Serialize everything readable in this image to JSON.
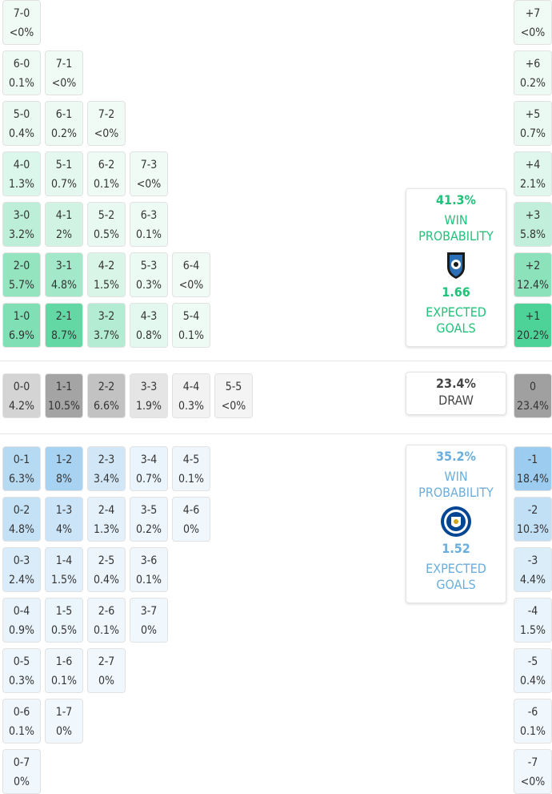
{
  "home_wins": [
    [
      [
        "7-0",
        "<0%"
      ]
    ],
    [
      [
        "6-0",
        "0.1%"
      ],
      [
        "7-1",
        "<0%"
      ]
    ],
    [
      [
        "5-0",
        "0.4%"
      ],
      [
        "6-1",
        "0.2%"
      ],
      [
        "7-2",
        "<0%"
      ]
    ],
    [
      [
        "4-0",
        "1.3%"
      ],
      [
        "5-1",
        "0.7%"
      ],
      [
        "6-2",
        "0.1%"
      ],
      [
        "7-3",
        "<0%"
      ]
    ],
    [
      [
        "3-0",
        "3.2%"
      ],
      [
        "4-1",
        "2%"
      ],
      [
        "5-2",
        "0.5%"
      ],
      [
        "6-3",
        "0.1%"
      ]
    ],
    [
      [
        "2-0",
        "5.7%"
      ],
      [
        "3-1",
        "4.8%"
      ],
      [
        "4-2",
        "1.5%"
      ],
      [
        "5-3",
        "0.3%"
      ],
      [
        "6-4",
        "<0%"
      ]
    ],
    [
      [
        "1-0",
        "6.9%"
      ],
      [
        "2-1",
        "8.7%"
      ],
      [
        "3-2",
        "3.7%"
      ],
      [
        "4-3",
        "0.8%"
      ],
      [
        "5-4",
        "0.1%"
      ]
    ]
  ],
  "draws": [
    [
      [
        "0-0",
        "4.2%"
      ],
      [
        "1-1",
        "10.5%"
      ],
      [
        "2-2",
        "6.6%"
      ],
      [
        "3-3",
        "1.9%"
      ],
      [
        "4-4",
        "0.3%"
      ],
      [
        "5-5",
        "<0%"
      ]
    ]
  ],
  "away_wins": [
    [
      [
        "0-1",
        "6.3%"
      ],
      [
        "1-2",
        "8%"
      ],
      [
        "2-3",
        "3.4%"
      ],
      [
        "3-4",
        "0.7%"
      ],
      [
        "4-5",
        "0.1%"
      ]
    ],
    [
      [
        "0-2",
        "4.8%"
      ],
      [
        "1-3",
        "4%"
      ],
      [
        "2-4",
        "1.3%"
      ],
      [
        "3-5",
        "0.2%"
      ],
      [
        "4-6",
        "0%"
      ]
    ],
    [
      [
        "0-3",
        "2.4%"
      ],
      [
        "1-4",
        "1.5%"
      ],
      [
        "2-5",
        "0.4%"
      ],
      [
        "3-6",
        "0.1%"
      ]
    ],
    [
      [
        "0-4",
        "0.9%"
      ],
      [
        "1-5",
        "0.5%"
      ],
      [
        "2-6",
        "0.1%"
      ],
      [
        "3-7",
        "0%"
      ]
    ],
    [
      [
        "0-5",
        "0.3%"
      ],
      [
        "1-6",
        "0.1%"
      ],
      [
        "2-7",
        "0%"
      ]
    ],
    [
      [
        "0-6",
        "0.1%"
      ],
      [
        "1-7",
        "0%"
      ]
    ],
    [
      [
        "0-7",
        "0%"
      ]
    ]
  ],
  "home_margins": [
    [
      "+7",
      "<0%"
    ],
    [
      "+6",
      "0.2%"
    ],
    [
      "+5",
      "0.7%"
    ],
    [
      "+4",
      "2.1%"
    ],
    [
      "+3",
      "5.8%"
    ],
    [
      "+2",
      "12.4%"
    ],
    [
      "+1",
      "20.2%"
    ]
  ],
  "draw_margin": [
    [
      "0",
      "23.4%"
    ]
  ],
  "away_margins": [
    [
      "-1",
      "18.4%"
    ],
    [
      "-2",
      "10.3%"
    ],
    [
      "-3",
      "4.4%"
    ],
    [
      "-4",
      "1.5%"
    ],
    [
      "-5",
      "0.4%"
    ],
    [
      "-6",
      "0.1%"
    ],
    [
      "-7",
      "<0%"
    ]
  ],
  "home_summary": {
    "win_probability": "41.3%",
    "win_label": "WIN PROBABILITY",
    "expected_goals": "1.66",
    "goals_label": "EXPECTED GOALS"
  },
  "draw_summary": {
    "probability": "23.4%",
    "label": "DRAW"
  },
  "away_summary": {
    "win_probability": "35.2%",
    "win_label": "WIN PROBABILITY",
    "expected_goals": "1.52",
    "goals_label": "EXPECTED GOALS"
  }
}
